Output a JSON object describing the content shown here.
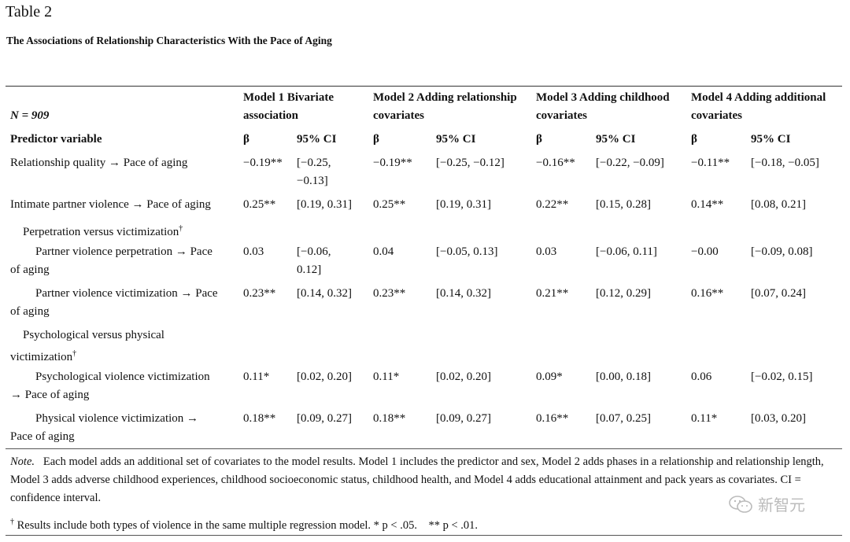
{
  "table_label": "Table 2",
  "title": "The Associations of Relationship Characteristics With the Pace of Aging",
  "header": {
    "n_label": "N = 909",
    "predictor_label": "Predictor variable",
    "models": [
      {
        "line1": "Model 1 Bivariate",
        "line2": "association",
        "beta": "β",
        "ci": "95% CI"
      },
      {
        "line1": "Model 2 Adding relationship",
        "line2": "covariates",
        "beta": "β",
        "ci": "95% CI"
      },
      {
        "line1": "Model 3 Adding childhood",
        "line2": "covariates",
        "beta": "β",
        "ci": "95% CI"
      },
      {
        "line1": "Model 4 Adding additional",
        "line2": "covariates",
        "beta": "β",
        "ci": "95% CI"
      }
    ]
  },
  "rows": [
    {
      "label1": "Relationship quality → Pace of aging",
      "label2": "",
      "b1": "−0.19**",
      "ci1a": "[−0.25,",
      "ci1b": "−0.13]",
      "b2": "−0.19**",
      "ci2": "[−0.25, −0.12]",
      "b3": "−0.16**",
      "ci3": "[−0.22, −0.09]",
      "b4": "−0.11**",
      "ci4": "[−0.18, −0.05]"
    },
    {
      "label1": "Intimate partner violence → Pace of aging",
      "label2": "",
      "b1": "0.25**",
      "ci1a": "[0.19, 0.31]",
      "ci1b": "",
      "b2": "0.25**",
      "ci2": "[0.19, 0.31]",
      "b3": "0.22**",
      "ci3": "[0.15, 0.28]",
      "b4": "0.14**",
      "ci4": "[0.08, 0.21]"
    },
    {
      "label1": "Perpetration versus victimization",
      "sup": "†"
    },
    {
      "label1": "Partner violence perpetration → Pace",
      "label2": "of aging",
      "b1": "0.03",
      "ci1a": "[−0.06,",
      "ci1b": "0.12]",
      "b2": "0.04",
      "ci2": "[−0.05, 0.13]",
      "b3": "0.03",
      "ci3": "[−0.06, 0.11]",
      "b4": "−0.00",
      "ci4": "[−0.09, 0.08]"
    },
    {
      "label1": "Partner violence victimization → Pace",
      "label2": "of aging",
      "b1": "0.23**",
      "ci1a": "[0.14, 0.32]",
      "ci1b": "",
      "b2": "0.23**",
      "ci2": "[0.14, 0.32]",
      "b3": "0.21**",
      "ci3": "[0.12, 0.29]",
      "b4": "0.16**",
      "ci4": "[0.07, 0.24]"
    },
    {
      "label1": "Psychological versus physical",
      "label2": "victimization",
      "sup": "†"
    },
    {
      "label1": "Psychological violence victimization",
      "label2": "→ Pace of aging",
      "b1": "0.11*",
      "ci1a": "[0.02, 0.20]",
      "ci1b": "",
      "b2": "0.11*",
      "ci2": "[0.02, 0.20]",
      "b3": "0.09*",
      "ci3": "[0.00, 0.18]",
      "b4": "0.06",
      "ci4": "[−0.02, 0.15]"
    },
    {
      "label1": "Physical violence victimization →",
      "label2": "Pace of aging",
      "b1": "0.18**",
      "ci1a": "[0.09, 0.27]",
      "ci1b": "",
      "b2": "0.18**",
      "ci2": "[0.09, 0.27]",
      "b3": "0.16**",
      "ci3": "[0.07, 0.25]",
      "b4": "0.11*",
      "ci4": "[0.03, 0.20]"
    }
  ],
  "note": {
    "label": "Note.",
    "text": "Each model adds an additional set of covariates to the model results. Model 1 includes the predictor and sex, Model 2 adds phases in a relationship and relationship length, Model 3 adds adverse childhood experiences, childhood socioeconomic status, childhood health, and Model 4 adds educational attainment and pack years as covariates. CI = confidence interval.",
    "footnote_mark": "†",
    "footnote": "Results include both types of violence in the same multiple regression model.",
    "sig1": "* p < .05.",
    "sig2": "** p < .01."
  },
  "watermark": {
    "text": "新智元",
    "icon": "wechat-logo-icon"
  }
}
